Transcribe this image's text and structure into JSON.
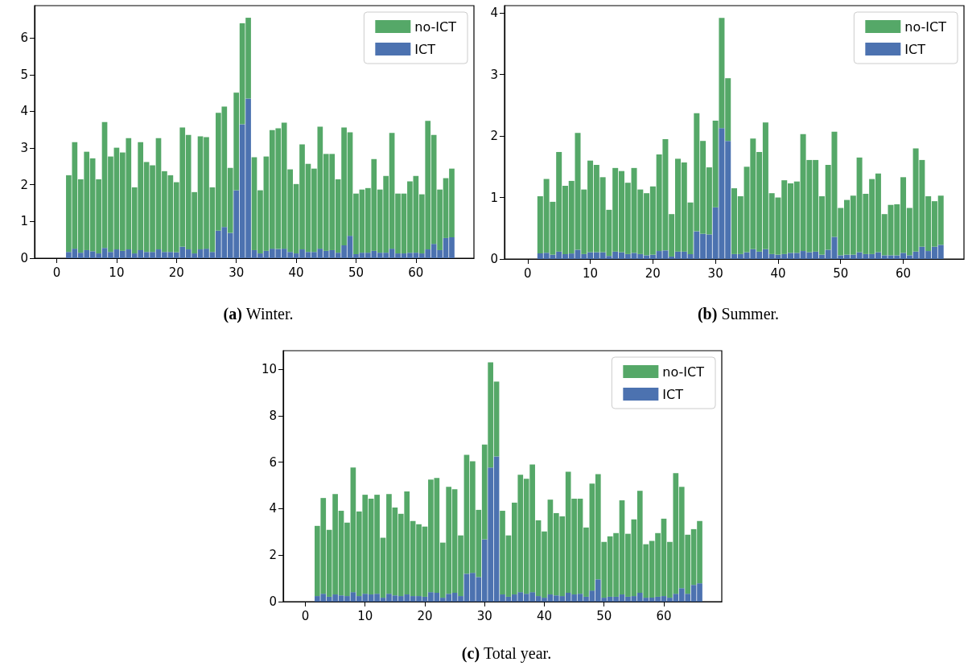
{
  "chart_data": [
    {
      "type": "bar",
      "title": "(a) Winter.",
      "stacked": true,
      "legend": "top right",
      "xlim": [
        -3.7,
        69.7
      ],
      "xticks": [
        0,
        10,
        20,
        30,
        40,
        50,
        60
      ],
      "ylim": [
        0,
        6.88
      ],
      "yticks": [
        0,
        1,
        2,
        3,
        4,
        5,
        6
      ],
      "x": [
        2,
        3,
        4,
        5,
        6,
        7,
        8,
        9,
        10,
        11,
        12,
        13,
        14,
        15,
        16,
        17,
        18,
        19,
        20,
        21,
        22,
        23,
        24,
        25,
        26,
        27,
        28,
        29,
        30,
        31,
        32,
        33,
        34,
        35,
        36,
        37,
        38,
        39,
        40,
        41,
        42,
        43,
        44,
        45,
        46,
        47,
        48,
        49,
        50,
        51,
        52,
        53,
        54,
        55,
        56,
        57,
        58,
        59,
        60,
        61,
        62,
        63,
        64,
        65,
        66
      ],
      "series": [
        {
          "name": "ICT",
          "color": "#4c72b0",
          "values": [
            0.17,
            0.26,
            0.15,
            0.22,
            0.19,
            0.13,
            0.28,
            0.17,
            0.24,
            0.2,
            0.24,
            0.13,
            0.22,
            0.17,
            0.17,
            0.24,
            0.17,
            0.17,
            0.16,
            0.31,
            0.24,
            0.13,
            0.24,
            0.26,
            0.17,
            0.75,
            0.85,
            0.69,
            1.85,
            3.65,
            4.35,
            0.22,
            0.13,
            0.2,
            0.26,
            0.25,
            0.26,
            0.17,
            0.13,
            0.24,
            0.17,
            0.17,
            0.26,
            0.2,
            0.22,
            0.15,
            0.35,
            0.61,
            0.11,
            0.15,
            0.15,
            0.2,
            0.15,
            0.15,
            0.26,
            0.13,
            0.13,
            0.15,
            0.15,
            0.13,
            0.24,
            0.39,
            0.22,
            0.55,
            0.57
          ]
        },
        {
          "name": "no-ICT",
          "color": "#55a868",
          "values": [
            2.09,
            2.9,
            2.0,
            2.68,
            2.53,
            2.02,
            3.43,
            2.6,
            2.77,
            2.68,
            3.03,
            1.8,
            2.94,
            2.45,
            2.36,
            3.03,
            2.2,
            2.09,
            1.91,
            3.25,
            3.12,
            1.67,
            3.08,
            3.04,
            1.76,
            3.21,
            3.28,
            1.77,
            2.66,
            2.75,
            2.2,
            2.53,
            1.72,
            2.57,
            3.23,
            3.29,
            3.43,
            2.25,
            1.89,
            2.86,
            2.4,
            2.27,
            3.32,
            2.64,
            2.62,
            2.0,
            3.21,
            2.82,
            1.65,
            1.72,
            1.76,
            2.5,
            1.72,
            2.09,
            3.15,
            1.63,
            1.63,
            1.94,
            2.09,
            1.61,
            3.5,
            2.97,
            1.65,
            1.63,
            1.87
          ]
        }
      ]
    },
    {
      "type": "bar",
      "title": "(b) Summer.",
      "stacked": true,
      "legend": "top right",
      "xlim": [
        -3.7,
        69.7
      ],
      "xticks": [
        0,
        10,
        20,
        30,
        40,
        50,
        60
      ],
      "ylim": [
        0,
        4.12
      ],
      "yticks": [
        0,
        1,
        2,
        3,
        4
      ],
      "x": [
        2,
        3,
        4,
        5,
        6,
        7,
        8,
        9,
        10,
        11,
        12,
        13,
        14,
        15,
        16,
        17,
        18,
        19,
        20,
        21,
        22,
        23,
        24,
        25,
        26,
        27,
        28,
        29,
        30,
        31,
        32,
        33,
        34,
        35,
        36,
        37,
        38,
        39,
        40,
        41,
        42,
        43,
        44,
        45,
        46,
        47,
        48,
        49,
        50,
        51,
        52,
        53,
        54,
        55,
        56,
        57,
        58,
        59,
        60,
        61,
        62,
        63,
        64,
        65,
        66
      ],
      "series": [
        {
          "name": "ICT",
          "color": "#4c72b0",
          "values": [
            0.09,
            0.1,
            0.07,
            0.12,
            0.08,
            0.09,
            0.15,
            0.08,
            0.11,
            0.11,
            0.11,
            0.05,
            0.12,
            0.11,
            0.08,
            0.1,
            0.08,
            0.06,
            0.07,
            0.13,
            0.14,
            0.04,
            0.12,
            0.12,
            0.08,
            0.45,
            0.41,
            0.4,
            0.84,
            2.13,
            1.92,
            0.08,
            0.08,
            0.11,
            0.16,
            0.12,
            0.16,
            0.08,
            0.07,
            0.08,
            0.1,
            0.1,
            0.13,
            0.11,
            0.12,
            0.07,
            0.15,
            0.36,
            0.06,
            0.07,
            0.07,
            0.11,
            0.08,
            0.08,
            0.11,
            0.06,
            0.06,
            0.06,
            0.1,
            0.06,
            0.12,
            0.2,
            0.13,
            0.2,
            0.23
          ]
        },
        {
          "name": "no-ICT",
          "color": "#55a868",
          "values": [
            0.93,
            1.2,
            0.86,
            1.62,
            1.11,
            1.18,
            1.9,
            1.05,
            1.49,
            1.42,
            1.22,
            0.75,
            1.36,
            1.32,
            1.16,
            1.38,
            1.05,
            1.01,
            1.11,
            1.57,
            1.81,
            0.69,
            1.51,
            1.45,
            0.84,
            1.92,
            1.51,
            1.09,
            1.41,
            1.79,
            1.02,
            1.07,
            0.94,
            1.39,
            1.8,
            1.62,
            2.06,
            0.99,
            0.93,
            1.2,
            1.13,
            1.16,
            1.9,
            1.5,
            1.49,
            0.95,
            1.38,
            1.71,
            0.77,
            0.89,
            0.96,
            1.54,
            0.98,
            1.22,
            1.28,
            0.67,
            0.82,
            0.83,
            1.23,
            0.77,
            1.68,
            1.41,
            0.89,
            0.74,
            0.8
          ]
        }
      ]
    },
    {
      "type": "bar",
      "title": "(c) Total year.",
      "stacked": true,
      "legend": "top right",
      "xlim": [
        -3.7,
        69.7
      ],
      "xticks": [
        0,
        10,
        20,
        30,
        40,
        50,
        60
      ],
      "ylim": [
        0,
        10.8
      ],
      "yticks": [
        0,
        2,
        4,
        6,
        8,
        10
      ],
      "x": [
        2,
        3,
        4,
        5,
        6,
        7,
        8,
        9,
        10,
        11,
        12,
        13,
        14,
        15,
        16,
        17,
        18,
        19,
        20,
        21,
        22,
        23,
        24,
        25,
        26,
        27,
        28,
        29,
        30,
        31,
        32,
        33,
        34,
        35,
        36,
        37,
        38,
        39,
        40,
        41,
        42,
        43,
        44,
        45,
        46,
        47,
        48,
        49,
        50,
        51,
        52,
        53,
        54,
        55,
        56,
        57,
        58,
        59,
        60,
        61,
        62,
        63,
        64,
        65,
        66
      ],
      "series": [
        {
          "name": "ICT",
          "color": "#4c72b0",
          "values": [
            0.24,
            0.34,
            0.21,
            0.31,
            0.27,
            0.24,
            0.41,
            0.24,
            0.34,
            0.31,
            0.34,
            0.17,
            0.34,
            0.27,
            0.24,
            0.31,
            0.24,
            0.24,
            0.21,
            0.41,
            0.38,
            0.17,
            0.34,
            0.38,
            0.24,
            1.2,
            1.24,
            1.06,
            2.68,
            5.77,
            6.25,
            0.31,
            0.21,
            0.31,
            0.41,
            0.34,
            0.41,
            0.24,
            0.17,
            0.31,
            0.27,
            0.24,
            0.38,
            0.31,
            0.34,
            0.21,
            0.48,
            0.96,
            0.17,
            0.21,
            0.21,
            0.31,
            0.21,
            0.24,
            0.38,
            0.17,
            0.17,
            0.21,
            0.24,
            0.17,
            0.34,
            0.58,
            0.34,
            0.72,
            0.79
          ]
        },
        {
          "name": "no-ICT",
          "color": "#55a868",
          "values": [
            3.02,
            4.12,
            2.88,
            4.32,
            3.64,
            3.16,
            5.36,
            3.64,
            4.26,
            4.12,
            4.26,
            2.58,
            4.29,
            3.78,
            3.54,
            4.43,
            3.23,
            3.09,
            3.02,
            4.84,
            4.94,
            2.37,
            4.6,
            4.46,
            2.61,
            5.12,
            4.8,
            2.89,
            4.08,
            4.53,
            3.22,
            3.6,
            2.64,
            3.95,
            5.05,
            4.95,
            5.49,
            3.26,
            2.85,
            4.08,
            3.54,
            3.43,
            5.21,
            4.12,
            4.09,
            2.98,
            4.6,
            4.53,
            2.4,
            2.6,
            2.74,
            4.05,
            2.71,
            3.3,
            4.39,
            2.3,
            2.44,
            2.74,
            3.33,
            2.4,
            5.19,
            4.36,
            2.54,
            2.4,
            2.68
          ]
        }
      ]
    }
  ]
}
